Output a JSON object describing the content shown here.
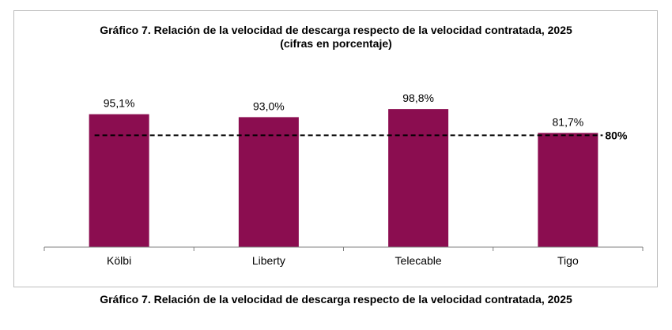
{
  "caption": "Gráfico 7. Relación de la velocidad de descarga respecto de la velocidad contratada, 2025",
  "chart_data": {
    "type": "bar",
    "title": "Gráfico 7. Relación de la velocidad de descarga respecto de la velocidad contratada, 2025",
    "subtitle": "(cifras en porcentaje)",
    "categories": [
      "Kölbi",
      "Liberty",
      "Telecable",
      "Tigo"
    ],
    "values": [
      95.1,
      93.0,
      98.8,
      81.7
    ],
    "value_labels": [
      "95,1%",
      "93,0%",
      "98,8%",
      "81,7%"
    ],
    "reference_line": {
      "value": 80,
      "label": "80%",
      "style": "dashed"
    },
    "ylim": [
      0,
      100
    ],
    "grid": false,
    "legend": "none",
    "bar_color": "#8b0d50",
    "xlabel": "",
    "ylabel": ""
  }
}
